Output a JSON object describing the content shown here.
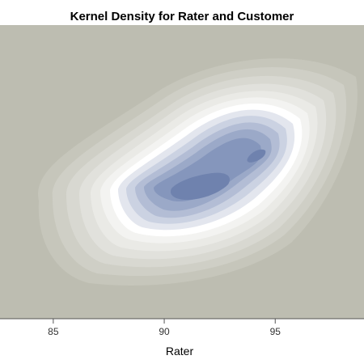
{
  "chart_data": {
    "type": "contour",
    "title": "Kernel Density for Rater and Customer",
    "xlabel": "Rater",
    "ylabel": "",
    "xlim": [
      82.6,
      99.0
    ],
    "x_ticks": [
      85,
      90,
      95
    ],
    "grid": false,
    "legend": "none",
    "colors": {
      "background": "#BDBDB1",
      "levels": [
        "#C6C6BB",
        "#CFCFC6",
        "#D8D8D1",
        "#E1E1DC",
        "#EAEAE6",
        "#F3F3F1",
        "#FFFFFF",
        "#E3E6EE",
        "#CBD2E2",
        "#B3BDD5",
        "#9BA9C8",
        "#8596BC",
        "#6F82AE"
      ]
    }
  }
}
